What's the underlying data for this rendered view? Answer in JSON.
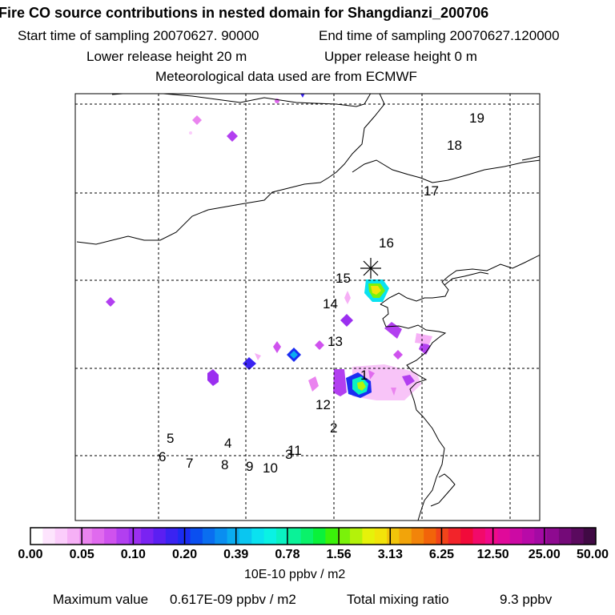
{
  "title": "Fire CO source contributions in nested domain for Shangdianzi_200706",
  "sampling": {
    "start_label": "Start time of sampling 20070627. 90000",
    "end_label": "End time of sampling 20070627.120000"
  },
  "release": {
    "lower_label": "Lower release height   20 m",
    "upper_label": "Upper release height    0 m"
  },
  "met_label": "Meteorological data used are from ECMWF",
  "station_marker": "Shangdianzi",
  "trajectory_labels": [
    "1",
    "2",
    "4",
    "5",
    "6",
    "7",
    "8",
    "9",
    "10",
    "11",
    "3",
    "12",
    "13",
    "14",
    "15",
    "16",
    "17",
    "18",
    "19"
  ],
  "colorbar": {
    "ticks": [
      "0.00",
      "0.05",
      "0.10",
      "0.20",
      "0.39",
      "0.78",
      "1.56",
      "3.13",
      "6.25",
      "12.50",
      "25.00",
      "50.00"
    ],
    "colors": [
      "#ffffff",
      "#fde4fd",
      "#fbcdfb",
      "#f6b0f6",
      "#ea84ef",
      "#e06aee",
      "#cf52ee",
      "#b23ff0",
      "#9b2ff0",
      "#7a23f2",
      "#5b1ff2",
      "#3a23f2",
      "#1b2cf2",
      "#0a4ff0",
      "#0a6ef0",
      "#0a8ef0",
      "#0aacf0",
      "#0ac6f0",
      "#0ae2f0",
      "#0af2e4",
      "#0af2c2",
      "#0af298",
      "#0af26a",
      "#0af23a",
      "#3af20a",
      "#7af20a",
      "#b4f20a",
      "#e6f20a",
      "#f2e40a",
      "#f2c40a",
      "#f2a40a",
      "#f2840a",
      "#f2640a",
      "#f2441a",
      "#f2242a",
      "#f20a3a",
      "#f20a6a",
      "#f00a8a",
      "#e00a9a",
      "#cc0aa4",
      "#b80aa8",
      "#a40aa4",
      "#8e0a90",
      "#740a78",
      "#5a0a5e",
      "#400a44"
    ],
    "units": "10E-10 ppbv / m2"
  },
  "footer": {
    "max_label": "Maximum value",
    "max_value": "0.617E-09 ppbv / m2",
    "total_label": "Total mixing ratio",
    "total_value": "9.3 ppbv"
  }
}
